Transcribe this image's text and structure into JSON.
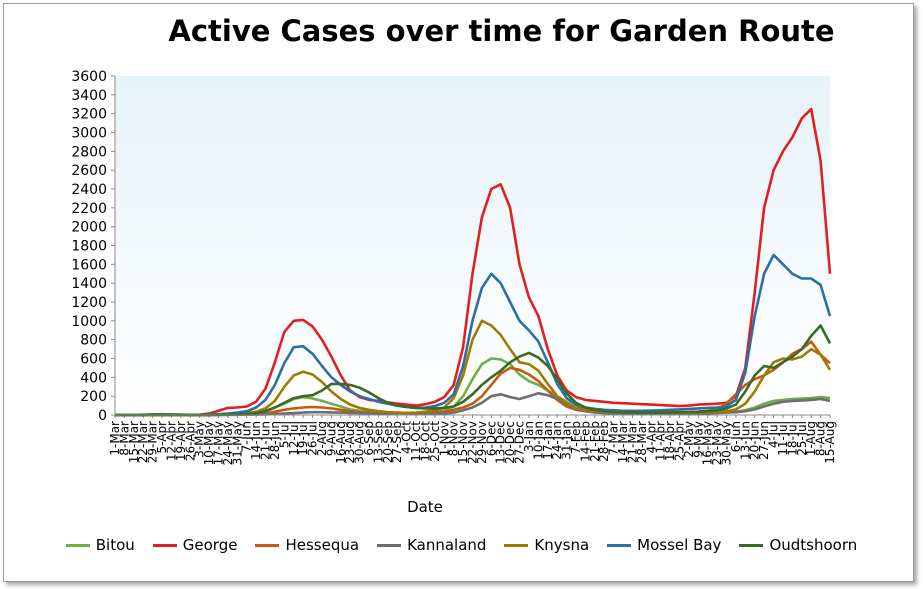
{
  "chart_data": {
    "type": "line",
    "title": "Active Cases over time for Garden Route",
    "xlabel": "Date",
    "ylabel": "",
    "ylim": [
      0,
      3600
    ],
    "yticks": [
      0,
      200,
      400,
      600,
      800,
      1000,
      1200,
      1400,
      1600,
      1800,
      2000,
      2200,
      2400,
      2600,
      2800,
      3000,
      3200,
      3400,
      3600
    ],
    "grid": false,
    "legend_position": "bottom",
    "x_tick_labels": [
      "1-Mar",
      "8-Mar",
      "15-Mar",
      "22-Mar",
      "29-Mar",
      "5-Apr",
      "12-Apr",
      "19-Apr",
      "26-Apr",
      "3-May",
      "10-May",
      "17-May",
      "24-May",
      "31-May",
      "7-Jun",
      "14-Jun",
      "21-Jun",
      "28-Jun",
      "5-Jul",
      "12-Jul",
      "19-Jul",
      "26-Jul",
      "2-Aug",
      "9-Aug",
      "16-Aug",
      "23-Aug",
      "30-Aug",
      "6-Sep",
      "13-Sep",
      "20-Sep",
      "27-Sep",
      "4-Oct",
      "11-Oct",
      "18-Oct",
      "25-Oct",
      "1-Nov",
      "8-Nov",
      "15-Nov",
      "22-Nov",
      "29-Nov",
      "6-Dec",
      "13-Dec",
      "20-Dec",
      "27-Dec",
      "3-Jan",
      "10-Jan",
      "17-Jan",
      "24-Jan",
      "31-Jan",
      "7-Feb",
      "14-Feb",
      "21-Feb",
      "28-Feb",
      "7-Mar",
      "14-Mar",
      "21-Mar",
      "28-Mar",
      "4-Apr",
      "11-Apr",
      "18-Apr",
      "25-Apr",
      "2-May",
      "9-May",
      "16-May",
      "23-May",
      "30-May",
      "6-Jun",
      "13-Jun",
      "20-Jun",
      "27-Jun",
      "4-Jul",
      "11-Jul",
      "18-Jul",
      "25-Jul",
      "1-Aug",
      "8-Aug",
      "15-Aug"
    ],
    "series": [
      {
        "name": "Bitou",
        "color": "#70ad47",
        "values": [
          0,
          0,
          0,
          1,
          2,
          2,
          2,
          1,
          1,
          1,
          2,
          4,
          6,
          8,
          12,
          22,
          45,
          80,
          120,
          170,
          190,
          175,
          150,
          120,
          90,
          60,
          45,
          35,
          25,
          18,
          15,
          14,
          15,
          20,
          30,
          45,
          90,
          200,
          380,
          540,
          600,
          590,
          540,
          430,
          360,
          320,
          260,
          200,
          140,
          90,
          60,
          45,
          35,
          30,
          25,
          22,
          20,
          20,
          20,
          20,
          20,
          22,
          25,
          25,
          28,
          30,
          35,
          50,
          80,
          120,
          150,
          160,
          170,
          175,
          180,
          190,
          180
        ]
      },
      {
        "name": "George",
        "color": "#e02020",
        "values": [
          0,
          0,
          0,
          3,
          6,
          8,
          5,
          3,
          2,
          3,
          15,
          45,
          75,
          80,
          90,
          140,
          280,
          560,
          880,
          1000,
          1010,
          940,
          800,
          620,
          420,
          260,
          190,
          160,
          150,
          135,
          120,
          110,
          100,
          115,
          140,
          190,
          320,
          720,
          1500,
          2100,
          2400,
          2450,
          2200,
          1600,
          1250,
          1050,
          700,
          420,
          260,
          190,
          160,
          150,
          140,
          130,
          125,
          120,
          115,
          110,
          105,
          100,
          95,
          100,
          110,
          115,
          120,
          130,
          200,
          500,
          1300,
          2200,
          2600,
          2800,
          2950,
          3150,
          3250,
          2700,
          1500
        ]
      },
      {
        "name": "Hessequa",
        "color": "#c55a11",
        "values": [
          0,
          0,
          0,
          0,
          0,
          0,
          0,
          0,
          0,
          0,
          1,
          2,
          3,
          4,
          6,
          10,
          18,
          35,
          55,
          70,
          80,
          85,
          80,
          70,
          55,
          40,
          30,
          25,
          20,
          18,
          16,
          15,
          16,
          20,
          25,
          35,
          55,
          80,
          120,
          200,
          320,
          440,
          500,
          480,
          430,
          360,
          260,
          160,
          90,
          55,
          40,
          30,
          25,
          22,
          20,
          20,
          20,
          22,
          25,
          25,
          28,
          30,
          35,
          45,
          60,
          120,
          220,
          320,
          380,
          420,
          480,
          560,
          650,
          700,
          780,
          640,
          550
        ]
      },
      {
        "name": "Kannaland",
        "color": "#6e6e6e",
        "values": [
          0,
          0,
          0,
          0,
          0,
          0,
          0,
          0,
          0,
          0,
          0,
          1,
          1,
          2,
          3,
          4,
          6,
          10,
          15,
          20,
          25,
          30,
          30,
          28,
          25,
          22,
          20,
          18,
          16,
          14,
          12,
          11,
          10,
          10,
          12,
          15,
          25,
          50,
          80,
          130,
          200,
          220,
          190,
          170,
          200,
          230,
          210,
          170,
          110,
          65,
          40,
          28,
          20,
          16,
          14,
          12,
          12,
          12,
          12,
          12,
          13,
          14,
          16,
          18,
          22,
          26,
          30,
          40,
          60,
          90,
          120,
          140,
          150,
          155,
          160,
          170,
          150
        ]
      },
      {
        "name": "Knysna",
        "color": "#a07a00",
        "values": [
          0,
          0,
          0,
          0,
          1,
          2,
          2,
          1,
          1,
          1,
          3,
          6,
          10,
          14,
          20,
          35,
          70,
          150,
          300,
          420,
          460,
          430,
          350,
          250,
          170,
          110,
          75,
          55,
          40,
          30,
          25,
          22,
          25,
          35,
          50,
          80,
          180,
          420,
          800,
          1000,
          950,
          850,
          700,
          560,
          540,
          470,
          330,
          200,
          120,
          75,
          55,
          42,
          35,
          30,
          26,
          24,
          22,
          22,
          22,
          22,
          24,
          26,
          28,
          30,
          35,
          40,
          60,
          120,
          250,
          420,
          560,
          600,
          590,
          620,
          700,
          640,
          480
        ]
      },
      {
        "name": "Mossel Bay",
        "color": "#2e6ea6",
        "values": [
          0,
          0,
          0,
          2,
          5,
          6,
          5,
          3,
          2,
          2,
          4,
          8,
          15,
          25,
          40,
          80,
          160,
          320,
          550,
          720,
          730,
          650,
          520,
          400,
          320,
          250,
          200,
          170,
          140,
          120,
          100,
          85,
          75,
          80,
          95,
          130,
          220,
          520,
          1000,
          1350,
          1500,
          1400,
          1200,
          1000,
          900,
          780,
          560,
          330,
          180,
          110,
          80,
          65,
          55,
          50,
          45,
          45,
          45,
          48,
          50,
          55,
          60,
          65,
          70,
          75,
          80,
          95,
          160,
          450,
          1050,
          1500,
          1700,
          1600,
          1500,
          1450,
          1450,
          1380,
          1050
        ]
      },
      {
        "name": "Oudtshoorn",
        "color": "#3a6b26",
        "values": [
          0,
          0,
          0,
          0,
          0,
          0,
          0,
          0,
          0,
          0,
          1,
          2,
          4,
          6,
          10,
          18,
          40,
          80,
          130,
          180,
          200,
          210,
          260,
          330,
          330,
          320,
          290,
          240,
          180,
          130,
          100,
          85,
          75,
          70,
          70,
          75,
          90,
          140,
          220,
          320,
          400,
          470,
          560,
          620,
          660,
          610,
          520,
          380,
          230,
          130,
          80,
          55,
          40,
          32,
          28,
          25,
          24,
          24,
          26,
          28,
          30,
          32,
          35,
          40,
          50,
          70,
          110,
          250,
          420,
          520,
          500,
          560,
          620,
          700,
          840,
          950,
          760
        ]
      }
    ]
  }
}
